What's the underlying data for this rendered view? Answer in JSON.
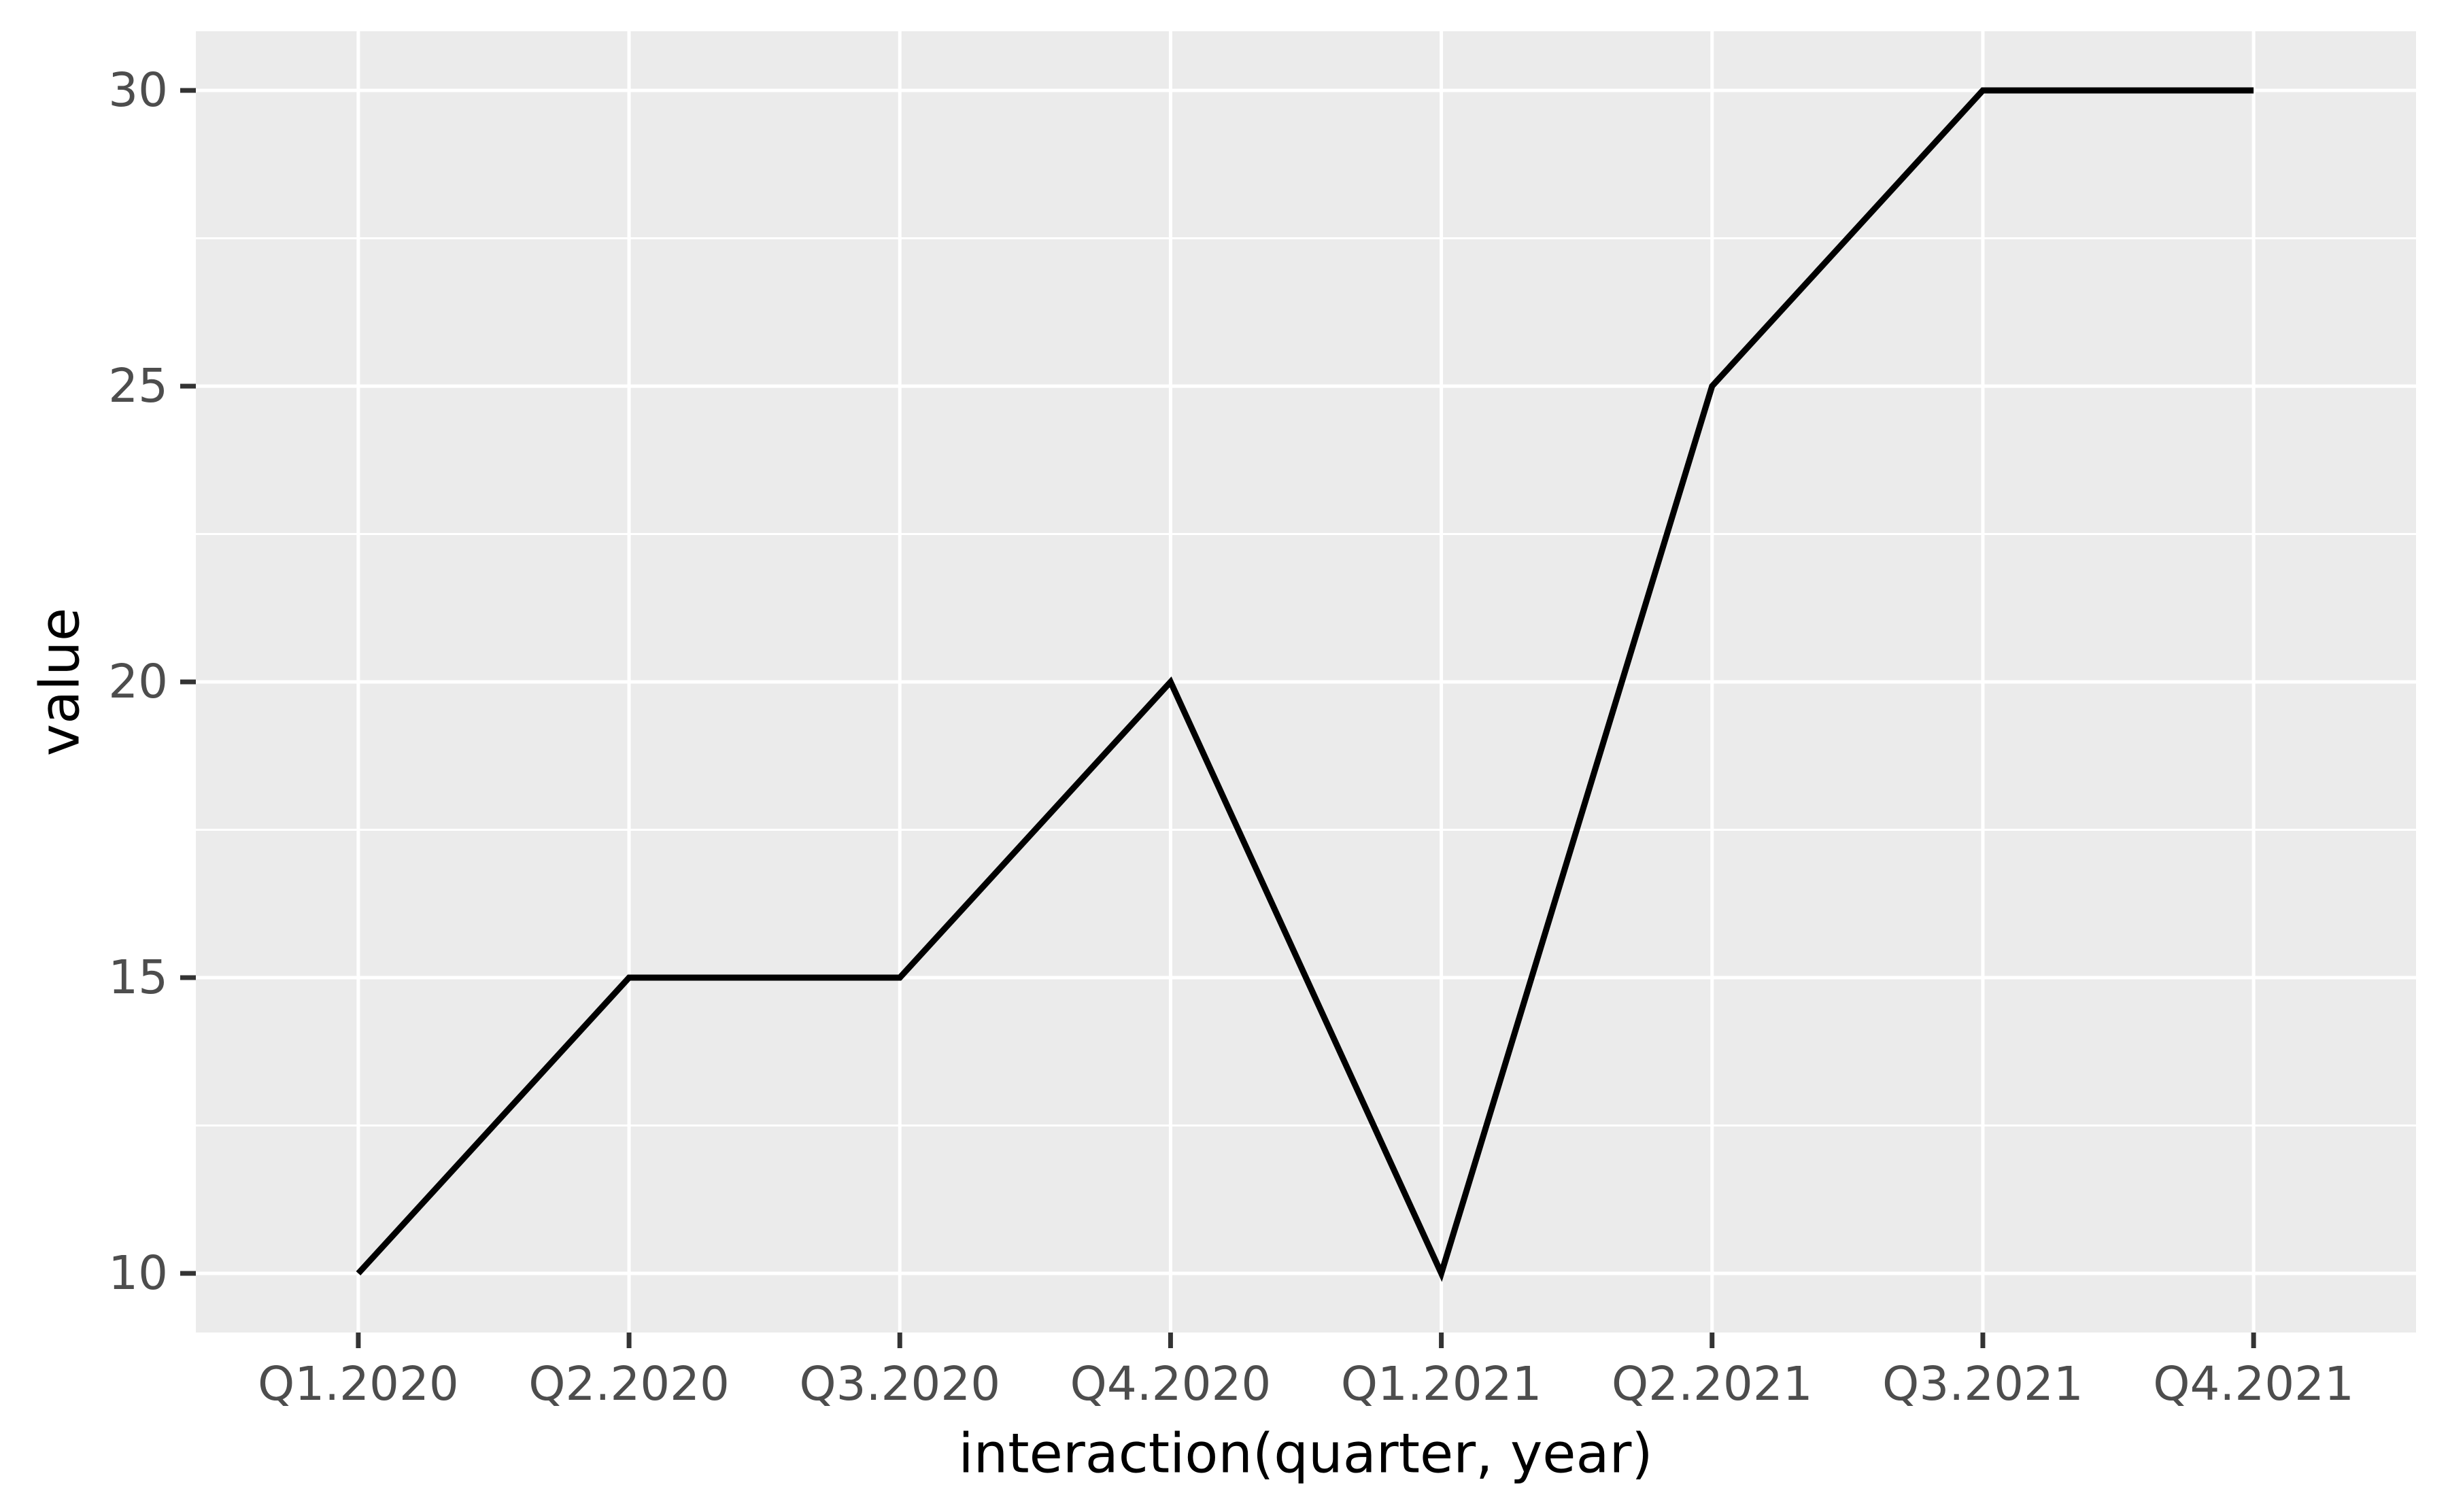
{
  "figure": {
    "x_axis_title": "interaction(quarter, year)",
    "y_axis_title": "value"
  },
  "chart_data": {
    "type": "line",
    "categories": [
      "Q1.2020",
      "Q2.2020",
      "Q3.2020",
      "Q4.2020",
      "Q1.2021",
      "Q2.2021",
      "Q3.2021",
      "Q4.2021"
    ],
    "values": [
      10,
      15,
      15,
      20,
      10,
      25,
      30,
      30
    ],
    "title": "",
    "xlabel": "interaction(quarter, year)",
    "ylabel": "value",
    "y_ticks": [
      10,
      15,
      20,
      25,
      30
    ],
    "ylim": [
      9,
      31
    ],
    "grid": "horizontal major+minor white, vertical major white at each category, no vertical minor",
    "legend": "none",
    "style": {
      "panel_background": "#EBEBEB",
      "grid_color": "#FFFFFF",
      "line_color": "#000000",
      "tick_label_color": "#4D4D4D",
      "tick_mark_color": "#333333",
      "axis_title_color": "#000000"
    }
  }
}
